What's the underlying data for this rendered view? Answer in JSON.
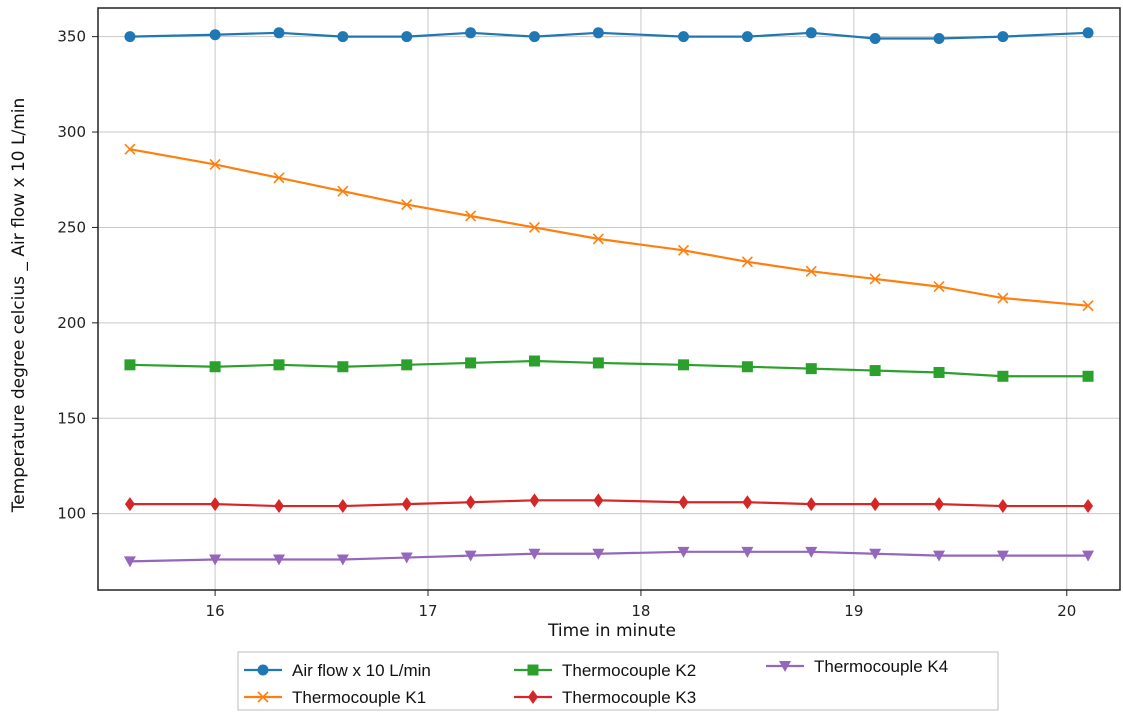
{
  "chart_data": {
    "type": "line",
    "title": "",
    "xlabel": "Time in minute",
    "ylabel": "Temperature degree celcius _ Air flow x 10 L/min",
    "xlim": [
      15.45,
      20.25
    ],
    "ylim": [
      60,
      365
    ],
    "xticks": [
      16,
      17,
      18,
      19,
      20
    ],
    "yticks": [
      100,
      150,
      200,
      250,
      300,
      350
    ],
    "grid": true,
    "legend_position": "bottom",
    "x": [
      15.6,
      16.0,
      16.3,
      16.6,
      16.9,
      17.2,
      17.5,
      17.8,
      18.2,
      18.5,
      18.8,
      19.1,
      19.4,
      19.7,
      20.1
    ],
    "series": [
      {
        "name": "Air flow x 10 L/min",
        "color": "#1f77b4",
        "marker": "circle",
        "values": [
          350,
          351,
          352,
          350,
          350,
          352,
          350,
          352,
          350,
          350,
          352,
          349,
          349,
          350,
          352
        ]
      },
      {
        "name": "Thermocouple K1",
        "color": "#ff7f0e",
        "marker": "x",
        "values": [
          291,
          283,
          276,
          269,
          262,
          256,
          250,
          244,
          238,
          232,
          227,
          223,
          219,
          213,
          209
        ]
      },
      {
        "name": "Thermocouple K2",
        "color": "#2ca02c",
        "marker": "square",
        "values": [
          178,
          177,
          178,
          177,
          178,
          179,
          180,
          179,
          178,
          177,
          176,
          175,
          174,
          172,
          172
        ]
      },
      {
        "name": "Thermocouple K3",
        "color": "#d62728",
        "marker": "diamond",
        "values": [
          105,
          105,
          104,
          104,
          105,
          106,
          107,
          107,
          106,
          106,
          105,
          105,
          105,
          104,
          104
        ]
      },
      {
        "name": "Thermocouple K4",
        "color": "#9467bd",
        "marker": "triangle-down",
        "values": [
          75,
          76,
          76,
          76,
          77,
          78,
          79,
          79,
          80,
          80,
          80,
          79,
          78,
          78,
          78
        ]
      }
    ]
  }
}
